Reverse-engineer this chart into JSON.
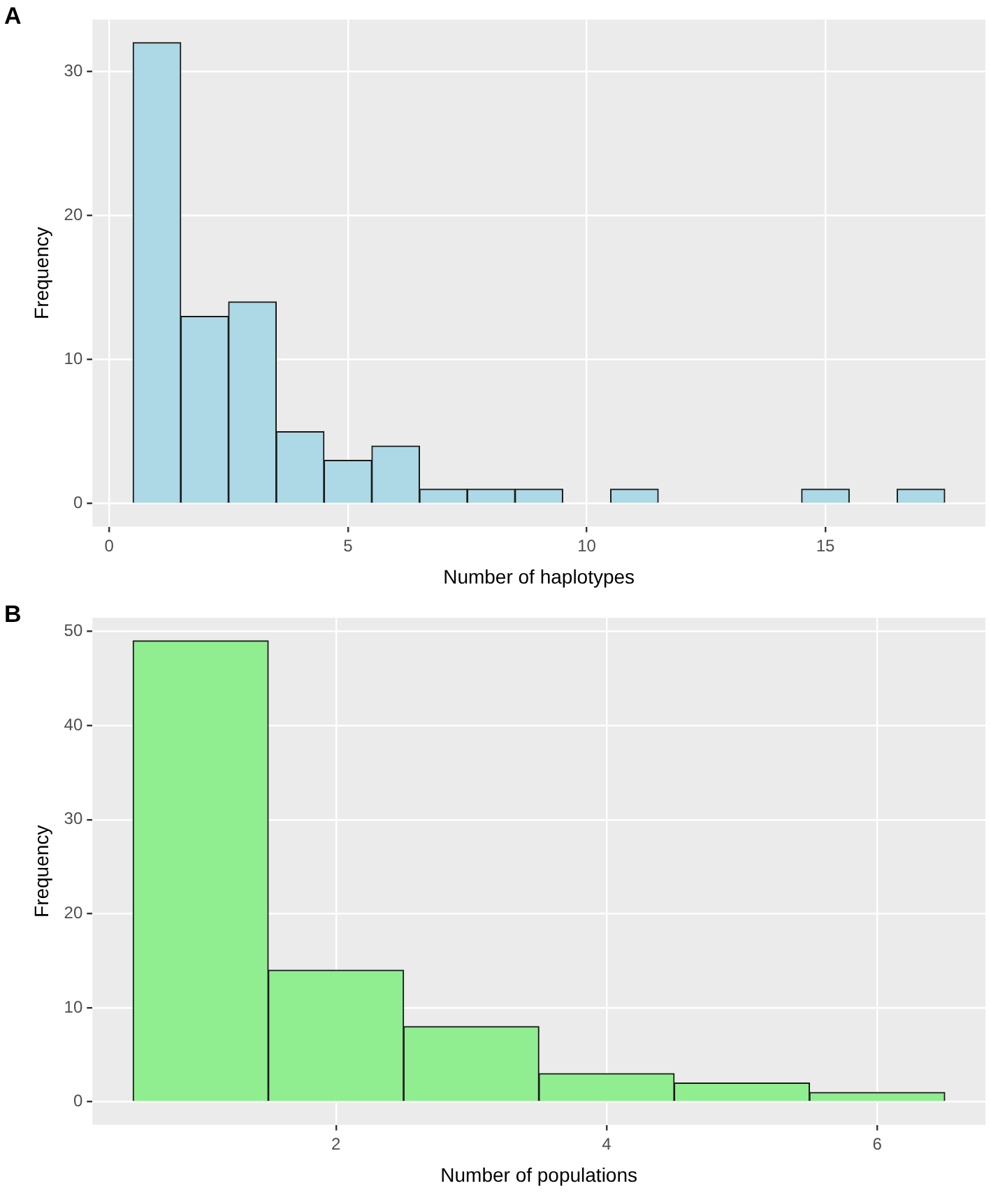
{
  "chart_data": [
    {
      "type": "histogram",
      "title": "A",
      "xlabel": "Number of haplotypes",
      "ylabel": "Frequency",
      "color": "#add8e6",
      "bins": [
        0.5,
        1.5,
        2.5,
        3.5,
        4.5,
        5.5,
        6.5,
        7.5,
        8.5,
        9.5,
        10.5,
        11.5,
        12.5,
        13.5,
        14.5,
        15.5,
        16.5,
        17.5
      ],
      "values": [
        32,
        13,
        14,
        5,
        3,
        4,
        1,
        1,
        1,
        0,
        1,
        0,
        0,
        0,
        1,
        0,
        1
      ],
      "xlim": [
        -0.35,
        18.35
      ],
      "xticks": [
        0,
        5,
        10,
        15
      ],
      "ylim": [
        -1.6,
        33.6
      ],
      "yticks": [
        0,
        10,
        20,
        30
      ],
      "grid": true
    },
    {
      "type": "histogram",
      "title": "B",
      "xlabel": "Number of populations",
      "ylabel": "Frequency",
      "color": "#90ee90",
      "bins": [
        0.5,
        1.5,
        2.5,
        3.5,
        4.5,
        5.5,
        6.5
      ],
      "values": [
        49,
        14,
        8,
        3,
        2,
        1
      ],
      "xlim": [
        0.2,
        6.8
      ],
      "xticks": [
        2,
        4,
        6
      ],
      "ylim": [
        -2.45,
        51.45
      ],
      "yticks": [
        0,
        10,
        20,
        30,
        40,
        50
      ],
      "grid": true
    }
  ]
}
